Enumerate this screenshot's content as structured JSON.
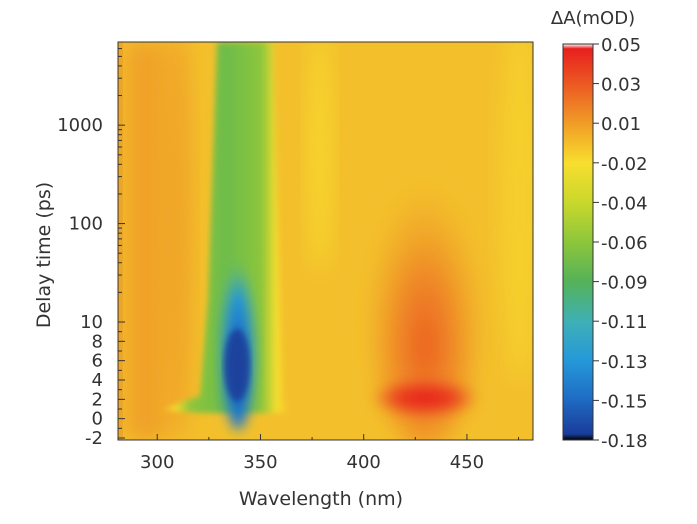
{
  "chart_data": {
    "type": "heatmap",
    "xlabel": "Wavelength (nm)",
    "ylabel": "Delay time (ps)",
    "xlim": [
      281,
      482
    ],
    "x_ticks": [
      300,
      350,
      400,
      450
    ],
    "y_ticks": [
      "1000",
      "100",
      "10",
      "8",
      "6",
      "4",
      "2",
      "0",
      "-2"
    ],
    "y_scale": "linear from -2 to 10 ps, logarithmic above 10 ps",
    "ylim": [
      -2,
      7000
    ],
    "colorbar": {
      "title": "ΔA(mOD)",
      "tick_labels": [
        "0.05",
        "0.03",
        "0.01",
        "-0.02",
        "-0.04",
        "-0.06",
        "-0.09",
        "-0.11",
        "-0.13",
        "-0.15",
        "-0.18"
      ],
      "values": [
        0.05,
        0.03,
        0.01,
        -0.02,
        -0.04,
        -0.06,
        -0.09,
        -0.11,
        -0.13,
        -0.15,
        -0.18
      ],
      "colors": [
        "#ffffff",
        "#e8201e",
        "#ec5f23",
        "#f1a327",
        "#f8de2e",
        "#c9d82c",
        "#8dc63b",
        "#54b259",
        "#3fb0b5",
        "#2598d9",
        "#1f6fc6",
        "#1a3c9a",
        "#000000"
      ]
    },
    "features": [
      {
        "x_center": 338,
        "y_center": 3,
        "value": -0.16
      },
      {
        "x_center": 338,
        "y_center": 1000,
        "value": -0.05
      },
      {
        "x_center": 425,
        "y_center": 2,
        "value": 0.05
      },
      {
        "x_center": 425,
        "y_center": 10,
        "value": 0.03
      }
    ],
    "grid": false,
    "legend": "colorbar-right"
  }
}
